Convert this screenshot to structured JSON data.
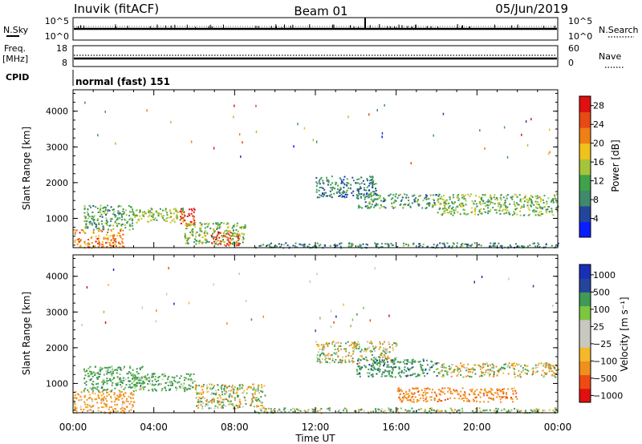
{
  "header": {
    "station": "Inuvik (fitACF)",
    "beam": "Beam 01",
    "date": "05/Jun/2019"
  },
  "status_panels": {
    "nsky_label": "N.Sky",
    "nsearch_label": "N.Search",
    "nsky_ticks": [
      "10^5",
      "10^0"
    ],
    "freq_label_1": "Freq.",
    "freq_label_2": "[MHz]",
    "freq_ticks": [
      "18",
      "8"
    ],
    "nave_label": "Nave",
    "nave_ticks": [
      "60",
      "0"
    ],
    "cpid_label": "CPID",
    "cpid_value": "normal (fast) 151"
  },
  "colors": {
    "power_scale": [
      "#0a1fff",
      "#24459c",
      "#3f8a6a",
      "#3fa24a",
      "#a6c43a",
      "#f0c21c",
      "#f07f14",
      "#e84a14",
      "#e01010"
    ],
    "velocity_scale": [
      "#e01010",
      "#f04a14",
      "#f0901c",
      "#f5b82a",
      "#c8c8c0",
      "#c8c8c0",
      "#7cc640",
      "#3f9a55",
      "#24459c",
      "#1a2fb8"
    ],
    "wave_fill": "#c8c8c0"
  },
  "chart_data": [
    {
      "type": "heatmap",
      "title": "",
      "xlabel": "Time UT",
      "ylabel": "Slant Range [km]",
      "x_ticks": [
        "00:00",
        "04:00",
        "08:00",
        "12:00",
        "16:00",
        "20:00",
        "00:00"
      ],
      "xlim_hours": [
        0,
        24
      ],
      "y_ticks": [
        "1000",
        "2000",
        "3000",
        "4000"
      ],
      "ylim": [
        180,
        4600
      ],
      "colorbar": {
        "label": "Power [dB]",
        "ticks": [
          "4",
          "8",
          "12",
          "16",
          "20",
          "24",
          "28"
        ],
        "range": [
          0,
          30
        ]
      },
      "scatter_regions": [
        {
          "t0": 0.0,
          "t1": 2.5,
          "r0": 180,
          "r1": 700,
          "v": 22
        },
        {
          "t0": 0.5,
          "t1": 3.0,
          "r0": 700,
          "r1": 1400,
          "v": 11
        },
        {
          "t0": 3.0,
          "t1": 5.5,
          "r0": 900,
          "r1": 1300,
          "v": 14
        },
        {
          "t0": 5.2,
          "t1": 6.0,
          "r0": 800,
          "r1": 1300,
          "v": 27
        },
        {
          "t0": 5.5,
          "t1": 8.5,
          "r0": 300,
          "r1": 900,
          "v": 13
        },
        {
          "t0": 6.8,
          "t1": 8.2,
          "r0": 250,
          "r1": 650,
          "v": 26
        },
        {
          "t0": 9.0,
          "t1": 24.0,
          "r0": 190,
          "r1": 330,
          "v": 9
        },
        {
          "t0": 12.0,
          "t1": 15.0,
          "r0": 1600,
          "r1": 2200,
          "v": 8
        },
        {
          "t0": 14.0,
          "t1": 18.0,
          "r0": 1300,
          "r1": 1700,
          "v": 10
        },
        {
          "t0": 18.0,
          "t1": 24.0,
          "r0": 1100,
          "r1": 1700,
          "v": 13
        }
      ]
    },
    {
      "type": "heatmap",
      "title": "",
      "xlabel": "Time UT",
      "ylabel": "Slant Range [km]",
      "x_ticks": [
        "00:00",
        "04:00",
        "08:00",
        "12:00",
        "16:00",
        "20:00",
        "00:00"
      ],
      "xlim_hours": [
        0,
        24
      ],
      "y_ticks": [
        "1000",
        "2000",
        "3000",
        "4000"
      ],
      "ylim": [
        180,
        4600
      ],
      "colorbar": {
        "label": "Velocity [m s⁻¹]",
        "ticks": [
          "1000",
          "500",
          "100",
          "25",
          "−25",
          "−100",
          "−500",
          "−1000"
        ],
        "range": [
          -1000,
          1000
        ]
      },
      "scatter_regions": [
        {
          "t0": 0.0,
          "t1": 3.0,
          "r0": 180,
          "r1": 800,
          "v": -150
        },
        {
          "t0": 0.5,
          "t1": 3.5,
          "r0": 800,
          "r1": 1500,
          "v": 150
        },
        {
          "t0": 3.0,
          "t1": 6.0,
          "r0": 800,
          "r1": 1300,
          "v": 120
        },
        {
          "t0": 6.0,
          "t1": 9.5,
          "r0": 300,
          "r1": 1000,
          "v": 0
        },
        {
          "t0": 9.0,
          "t1": 24.0,
          "r0": 190,
          "r1": 330,
          "v": 60
        },
        {
          "t0": 12.0,
          "t1": 16.0,
          "r0": 1600,
          "r1": 2200,
          "v": 0
        },
        {
          "t0": 14.0,
          "t1": 18.0,
          "r0": 1200,
          "r1": 1700,
          "v": 200
        },
        {
          "t0": 18.0,
          "t1": 24.0,
          "r0": 1200,
          "r1": 1600,
          "v": 0
        },
        {
          "t0": 16.0,
          "t1": 22.0,
          "r0": 500,
          "r1": 900,
          "v": -200
        }
      ]
    }
  ]
}
